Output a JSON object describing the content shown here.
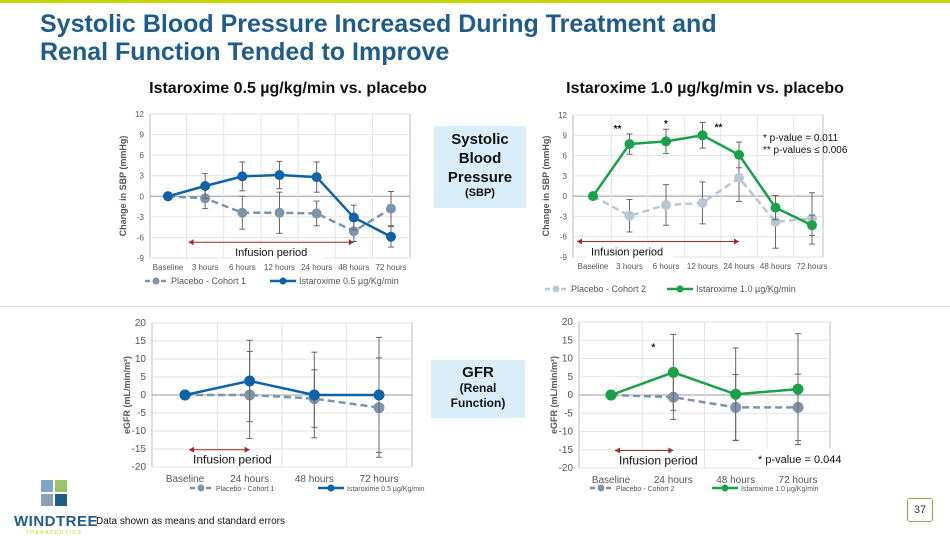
{
  "header": {
    "title_line1": "Systolic Blood Pressure Increased During Treatment and",
    "title_line2": "Renal Function Tended to Improve",
    "left_subtitle": "Istaroxime 0.5 µg/kg/min vs. placebo",
    "right_subtitle": "Istaroxime 1.0 µg/kg/min vs. placebo"
  },
  "labels": {
    "sbp_line1": "Systolic",
    "sbp_line2": "Blood",
    "sbp_line3": "Pressure",
    "sbp_abbr": "(SBP)",
    "gfr_line1": "GFR",
    "gfr_line2": "(Renal",
    "gfr_line3": "Function)"
  },
  "footer": {
    "note": "Data shown as means and standard errors",
    "page": "37",
    "logo_name": "WINDTREE",
    "logo_tag": "THERAPEUTICS"
  },
  "colors": {
    "accent_bar": "#c4d600",
    "title": "#1f5c8a",
    "low_dose": "#0f62a8",
    "high_dose": "#1aa14a",
    "placebo1": "#7f94a8",
    "placebo2": "#b9c7d3",
    "infusion": "#a32a2a"
  },
  "chart_data": [
    {
      "type": "line",
      "ylabel": "Change in SBP (mmHg)",
      "ylim": [
        -9,
        12
      ],
      "yticks": [
        -9,
        -6,
        -3,
        0,
        3,
        6,
        9,
        12
      ],
      "grid": true,
      "categories": [
        "Baseline",
        "3 hours",
        "6 hours",
        "12 hours",
        "24 hours",
        "48 hours",
        "72 hours"
      ],
      "annotation": "Infusion period",
      "annotation_range": [
        "3 hours",
        "48 hours"
      ],
      "legend": "bottom",
      "series": [
        {
          "name": "Placebo - Cohort 1",
          "values": [
            0,
            -0.3,
            -2.4,
            -2.4,
            -2.5,
            -5.1,
            -1.8
          ],
          "errors": [
            0,
            1.5,
            2.4,
            3.0,
            1.8,
            1.5,
            2.5
          ],
          "style": "dashed",
          "color": "#7f94a8"
        },
        {
          "name": "Istaroxime 0.5 µg/Kg/min",
          "values": [
            0,
            1.5,
            2.9,
            3.1,
            2.8,
            -3.1,
            -5.9
          ],
          "errors": [
            0,
            1.8,
            2.1,
            2.0,
            2.2,
            1.8,
            1.5
          ],
          "style": "solid",
          "color": "#0f62a8"
        }
      ],
      "markers": [],
      "notes": []
    },
    {
      "type": "line",
      "ylabel": "Change in SBP (mmHg)",
      "ylim": [
        -9,
        12
      ],
      "yticks": [
        -9,
        -6,
        -3,
        0,
        3,
        6,
        9,
        12
      ],
      "grid": true,
      "categories": [
        "Baseline",
        "3 hours",
        "6 hours",
        "12 hours",
        "24 hours",
        "48 hours",
        "72 hours"
      ],
      "annotation": "Infusion period",
      "annotation_range": [
        "Baseline",
        "24 hours"
      ],
      "legend": "bottom",
      "series": [
        {
          "name": "Placebo - Cohort 2",
          "values": [
            0,
            -2.9,
            -1.3,
            -1.0,
            2.7,
            -3.8,
            -3.3
          ],
          "errors": [
            0,
            2.4,
            3.0,
            3.1,
            3.5,
            3.9,
            3.8
          ],
          "style": "dashed",
          "color": "#b9c7d3"
        },
        {
          "name": "Istaroxime 1.0 µg/Kg/min",
          "values": [
            0,
            7.7,
            8.1,
            9.0,
            6.1,
            -1.7,
            -4.3
          ],
          "errors": [
            0,
            1.5,
            1.8,
            1.9,
            1.9,
            1.8,
            1.5
          ],
          "style": "solid",
          "color": "#1aa14a"
        }
      ],
      "markers": [
        {
          "category": "3 hours",
          "text": "**"
        },
        {
          "category": "6 hours",
          "text": "*"
        },
        {
          "category": "12 hours",
          "text": "**"
        }
      ],
      "notes": [
        "*  p-value = 0.011",
        "** p-values ≤ 0.006"
      ]
    },
    {
      "type": "line",
      "ylabel": "eGFR (mL/min/m²)",
      "ylim": [
        -20,
        20
      ],
      "yticks": [
        -20,
        -15,
        -10,
        -5,
        0,
        5,
        10,
        15,
        20
      ],
      "grid": true,
      "categories": [
        "Baseline",
        "24 hours",
        "48 hours",
        "72 hours"
      ],
      "annotation": "Infusion period",
      "annotation_range": [
        "Baseline",
        "24 hours"
      ],
      "legend": "bottom",
      "series": [
        {
          "name": "Placebo - Cohort 1",
          "values": [
            0,
            0,
            -1.0,
            -3.5
          ],
          "errors": [
            0,
            12.1,
            8.0,
            13.8
          ],
          "style": "dashed",
          "color": "#7f94a8"
        },
        {
          "name": "Istaroxime 0.5 µg/Kg/min",
          "values": [
            0,
            3.9,
            0,
            0
          ],
          "errors": [
            0,
            11.3,
            11.9,
            16.0
          ],
          "style": "solid",
          "color": "#0f62a8"
        }
      ],
      "markers": [],
      "notes": []
    },
    {
      "type": "line",
      "ylabel": "eGFR (mL/min/m²)",
      "ylim": [
        -20,
        20
      ],
      "yticks": [
        -20,
        -15,
        -10,
        -5,
        0,
        5,
        10,
        15,
        20
      ],
      "grid": true,
      "categories": [
        "Baseline",
        "24 hours",
        "48 hours",
        "72 hours"
      ],
      "annotation": "Infusion period",
      "annotation_range": [
        "Baseline",
        "24 hours"
      ],
      "legend": "bottom",
      "series": [
        {
          "name": "Placebo - Cohort 2",
          "values": [
            0,
            -0.6,
            -3.4,
            -3.4
          ],
          "errors": [
            0,
            6.1,
            9.0,
            9.1
          ],
          "style": "dashed",
          "color": "#7f94a8"
        },
        {
          "name": "Istaroxime 1.0 µg/Kg/min",
          "values": [
            0,
            6.2,
            0.2,
            1.6
          ],
          "errors": [
            0,
            10.4,
            12.7,
            15.2
          ],
          "style": "solid",
          "color": "#1aa14a"
        }
      ],
      "markers": [
        {
          "category": "24 hours",
          "text": "*"
        }
      ],
      "notes": [
        "* p-value = 0.044"
      ]
    }
  ]
}
